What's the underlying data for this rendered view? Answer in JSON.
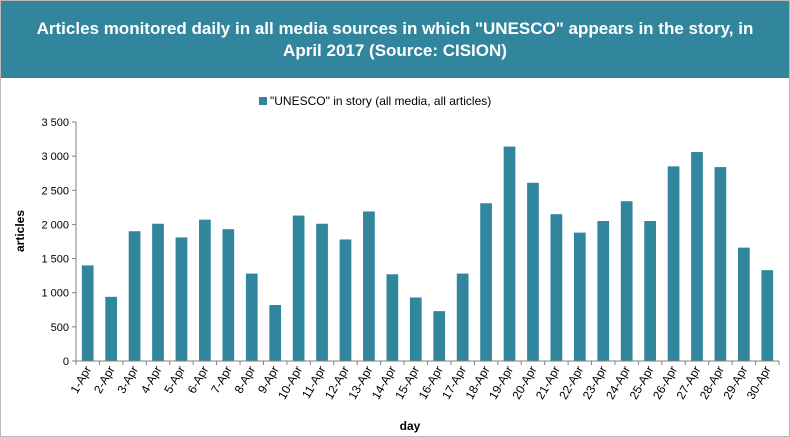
{
  "chart_data": {
    "type": "bar",
    "title": "Articles monitored daily in all media sources in which \"UNESCO\" appears in the story, in April 2017 (Source: CISION)",
    "xlabel": "day",
    "ylabel": "articles",
    "ylim": [
      0,
      3500
    ],
    "yticks": [
      0,
      500,
      1000,
      1500,
      2000,
      2500,
      3000,
      3500
    ],
    "ytick_labels": [
      "0",
      "500",
      "1 000",
      "1 500",
      "2 000",
      "2 500",
      "3 000",
      "3 500"
    ],
    "grid": false,
    "legend_position": "top-center",
    "bar_color": "#31859c",
    "title_band_color": "#31859c",
    "categories": [
      "1-Apr",
      "2-Apr",
      "3-Apr",
      "4-Apr",
      "5-Apr",
      "6-Apr",
      "7-Apr",
      "8-Apr",
      "9-Apr",
      "10-Apr",
      "11-Apr",
      "12-Apr",
      "13-Apr",
      "14-Apr",
      "15-Apr",
      "16-Apr",
      "17-Apr",
      "18-Apr",
      "19-Apr",
      "20-Apr",
      "21-Apr",
      "22-Apr",
      "23-Apr",
      "24-Apr",
      "25-Apr",
      "26-Apr",
      "27-Apr",
      "28-Apr",
      "29-Apr",
      "30-Apr"
    ],
    "series": [
      {
        "name": "\"UNESCO\" in story (all media, all articles)",
        "values": [
          1400,
          940,
          1900,
          2010,
          1810,
          2070,
          1930,
          1280,
          820,
          2130,
          2010,
          1780,
          2190,
          1270,
          930,
          730,
          1280,
          2310,
          3140,
          2610,
          2150,
          1880,
          2050,
          2340,
          2050,
          2850,
          3060,
          2840,
          1660,
          1330
        ]
      }
    ]
  }
}
